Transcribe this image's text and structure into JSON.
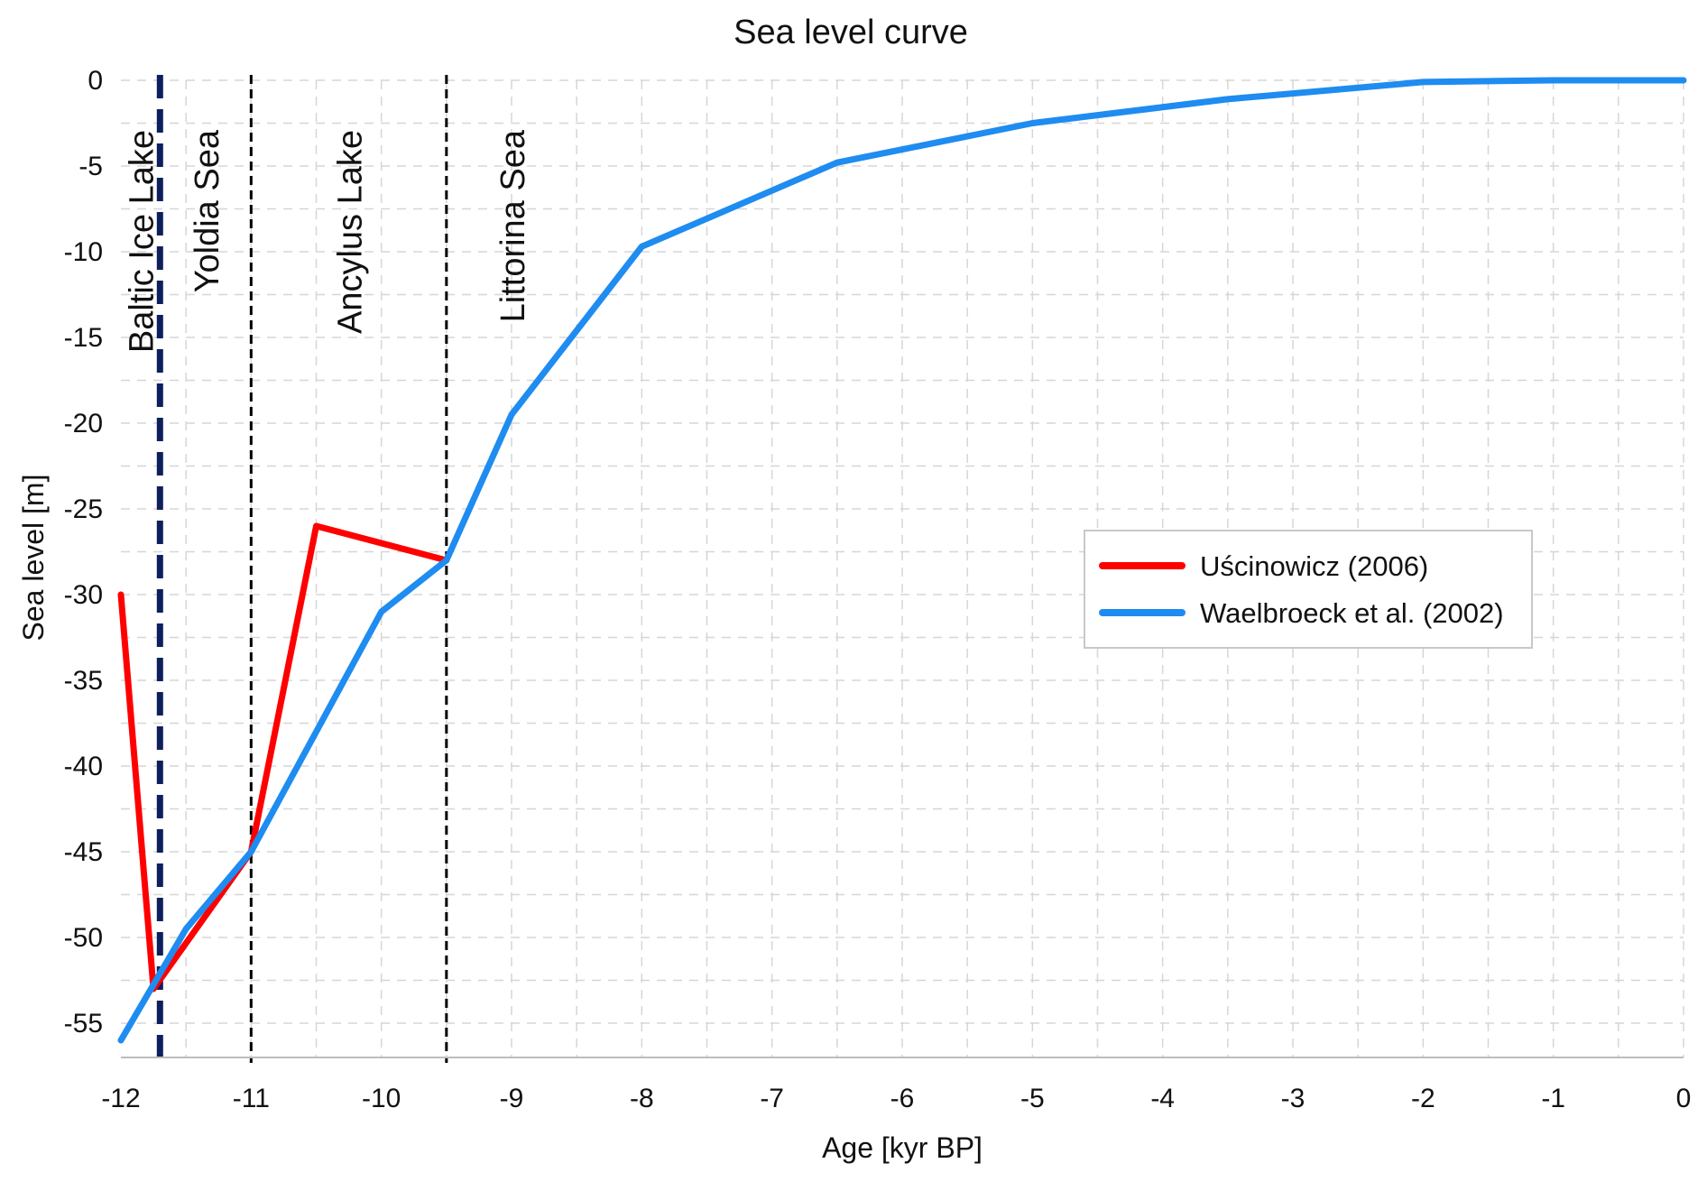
{
  "chart_data": {
    "type": "line",
    "title": "Sea level curve",
    "xlabel": "Age [kyr BP]",
    "ylabel": "Sea level [m]",
    "xlim": [
      -12,
      0
    ],
    "ylim": [
      -57,
      0
    ],
    "x_ticks": [
      -12,
      -11,
      -10,
      -9,
      -8,
      -7,
      -6,
      -5,
      -4,
      -3,
      -2,
      -1,
      0
    ],
    "y_ticks": [
      0,
      -5,
      -10,
      -15,
      -20,
      -25,
      -30,
      -35,
      -40,
      -45,
      -50,
      -55
    ],
    "grid": true,
    "legend_position": "right",
    "series": [
      {
        "name": "Uścinowicz (2006)",
        "color": "#ff0000",
        "points": [
          [
            -12,
            -30
          ],
          [
            -11.75,
            -53
          ],
          [
            -11.75,
            -53
          ],
          [
            -11,
            -45
          ],
          [
            -10.5,
            -26
          ],
          [
            -9.5,
            -28
          ]
        ]
      },
      {
        "name": "Waelbroeck et al. (2002)",
        "color": "#1e8cf0",
        "points": [
          [
            -12,
            -56
          ],
          [
            -11.5,
            -49.5
          ],
          [
            -11,
            -45
          ],
          [
            -10.5,
            -38
          ],
          [
            -10,
            -31
          ],
          [
            -9.5,
            -28
          ],
          [
            -9,
            -19.5
          ],
          [
            -8,
            -9.7
          ],
          [
            -6.5,
            -4.8
          ],
          [
            -5,
            -2.5
          ],
          [
            -3.5,
            -1.1
          ],
          [
            -2,
            -0.1
          ],
          [
            -1,
            0
          ],
          [
            0,
            0
          ]
        ]
      }
    ],
    "vertical_lines": [
      {
        "x": -11.7,
        "style": "dashed-thick",
        "color": "#0d1f5c"
      },
      {
        "x": -11,
        "style": "dashed",
        "color": "#000000"
      },
      {
        "x": -9.5,
        "style": "dashed",
        "color": "#000000"
      }
    ],
    "period_labels": [
      {
        "text": "Baltic Ice Lake",
        "x": -11.85
      },
      {
        "text": "Yoldia Sea",
        "x": -11.35
      },
      {
        "text": "Ancylus Lake",
        "x": -10.25
      },
      {
        "text": "Littorina Sea",
        "x": -9.0
      }
    ]
  }
}
